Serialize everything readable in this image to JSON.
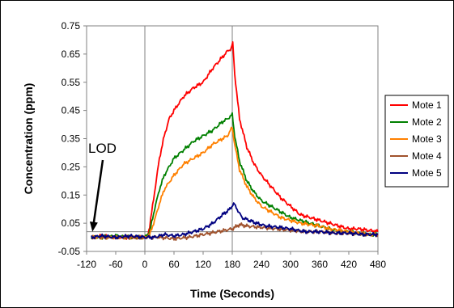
{
  "chart_data": {
    "type": "line",
    "title": "",
    "xlabel": "Time (Seconds)",
    "ylabel": "Concentration (ppm)",
    "xlim": [
      -120,
      480
    ],
    "ylim": [
      -0.05,
      0.75
    ],
    "xticks": [
      "-120",
      "-60",
      "0",
      "60",
      "120",
      "180",
      "240",
      "300",
      "360",
      "420",
      "480"
    ],
    "yticks": [
      "-0.05",
      "0.05",
      "0.15",
      "0.25",
      "0.35",
      "0.45",
      "0.55",
      "0.65",
      "0.75"
    ],
    "grid": false,
    "legend_position": "right",
    "reference_lines": {
      "vertical_x": [
        0,
        180
      ],
      "horizontal_y": [
        0.02
      ]
    },
    "annotation": {
      "text": "LOD",
      "points_to": [
        -108,
        0.02
      ]
    },
    "series": [
      {
        "name": "Mote 1",
        "color": "#ff0000",
        "points": [
          [
            -110,
            0.0
          ],
          [
            -90,
            0.005
          ],
          [
            -60,
            0.0
          ],
          [
            -30,
            0.0
          ],
          [
            0,
            0.0
          ],
          [
            5,
            0.0
          ],
          [
            10,
            0.04
          ],
          [
            20,
            0.16
          ],
          [
            30,
            0.28
          ],
          [
            40,
            0.36
          ],
          [
            50,
            0.42
          ],
          [
            60,
            0.45
          ],
          [
            80,
            0.5
          ],
          [
            100,
            0.53
          ],
          [
            120,
            0.55
          ],
          [
            140,
            0.6
          ],
          [
            160,
            0.64
          ],
          [
            170,
            0.66
          ],
          [
            178,
            0.67
          ],
          [
            181,
            0.69
          ],
          [
            185,
            0.58
          ],
          [
            195,
            0.42
          ],
          [
            210,
            0.32
          ],
          [
            225,
            0.26
          ],
          [
            240,
            0.22
          ],
          [
            260,
            0.18
          ],
          [
            280,
            0.14
          ],
          [
            300,
            0.11
          ],
          [
            320,
            0.08
          ],
          [
            340,
            0.07
          ],
          [
            360,
            0.06
          ],
          [
            380,
            0.05
          ],
          [
            400,
            0.04
          ],
          [
            420,
            0.03
          ],
          [
            440,
            0.03
          ],
          [
            460,
            0.025
          ],
          [
            480,
            0.02
          ]
        ]
      },
      {
        "name": "Mote 2",
        "color": "#008000",
        "points": [
          [
            -110,
            0.0
          ],
          [
            -90,
            0.0
          ],
          [
            -60,
            0.005
          ],
          [
            -30,
            0.0
          ],
          [
            0,
            0.0
          ],
          [
            10,
            0.02
          ],
          [
            20,
            0.1
          ],
          [
            30,
            0.17
          ],
          [
            40,
            0.22
          ],
          [
            60,
            0.28
          ],
          [
            80,
            0.31
          ],
          [
            100,
            0.34
          ],
          [
            120,
            0.36
          ],
          [
            140,
            0.38
          ],
          [
            160,
            0.41
          ],
          [
            170,
            0.42
          ],
          [
            180,
            0.435
          ],
          [
            185,
            0.36
          ],
          [
            195,
            0.27
          ],
          [
            210,
            0.2
          ],
          [
            225,
            0.16
          ],
          [
            240,
            0.13
          ],
          [
            260,
            0.11
          ],
          [
            280,
            0.09
          ],
          [
            300,
            0.07
          ],
          [
            320,
            0.06
          ],
          [
            340,
            0.05
          ],
          [
            360,
            0.04
          ],
          [
            380,
            0.03
          ],
          [
            400,
            0.02
          ],
          [
            420,
            0.02
          ],
          [
            440,
            0.015
          ],
          [
            460,
            0.01
          ],
          [
            480,
            0.01
          ]
        ]
      },
      {
        "name": "Mote 3",
        "color": "#ff8000",
        "points": [
          [
            -110,
            0.0
          ],
          [
            -90,
            0.0
          ],
          [
            -60,
            0.0
          ],
          [
            -30,
            0.0
          ],
          [
            0,
            0.0
          ],
          [
            10,
            0.01
          ],
          [
            20,
            0.06
          ],
          [
            30,
            0.12
          ],
          [
            40,
            0.17
          ],
          [
            60,
            0.22
          ],
          [
            80,
            0.26
          ],
          [
            100,
            0.28
          ],
          [
            120,
            0.3
          ],
          [
            140,
            0.33
          ],
          [
            160,
            0.35
          ],
          [
            170,
            0.36
          ],
          [
            180,
            0.39
          ],
          [
            185,
            0.33
          ],
          [
            195,
            0.24
          ],
          [
            210,
            0.18
          ],
          [
            225,
            0.14
          ],
          [
            240,
            0.11
          ],
          [
            260,
            0.09
          ],
          [
            280,
            0.07
          ],
          [
            300,
            0.06
          ],
          [
            320,
            0.05
          ],
          [
            340,
            0.045
          ],
          [
            360,
            0.04
          ],
          [
            380,
            0.03
          ],
          [
            400,
            0.025
          ],
          [
            420,
            0.02
          ],
          [
            440,
            0.015
          ],
          [
            460,
            0.01
          ],
          [
            480,
            0.01
          ]
        ]
      },
      {
        "name": "Mote 4",
        "color": "#a0522d",
        "points": [
          [
            -110,
            0.0
          ],
          [
            -90,
            0.0
          ],
          [
            -60,
            0.0
          ],
          [
            -30,
            0.0
          ],
          [
            0,
            0.0
          ],
          [
            30,
            0.0
          ],
          [
            60,
            -0.005
          ],
          [
            90,
            0.0
          ],
          [
            120,
            0.01
          ],
          [
            150,
            0.02
          ],
          [
            180,
            0.03
          ],
          [
            195,
            0.045
          ],
          [
            210,
            0.04
          ],
          [
            240,
            0.035
          ],
          [
            270,
            0.03
          ],
          [
            300,
            0.025
          ],
          [
            330,
            0.02
          ],
          [
            360,
            0.02
          ],
          [
            390,
            0.015
          ],
          [
            420,
            0.015
          ],
          [
            450,
            0.01
          ],
          [
            480,
            0.01
          ]
        ]
      },
      {
        "name": "Mote 5",
        "color": "#000080",
        "points": [
          [
            -110,
            0.0
          ],
          [
            -90,
            0.005
          ],
          [
            -60,
            0.0
          ],
          [
            -30,
            0.005
          ],
          [
            0,
            0.0
          ],
          [
            20,
            0.0
          ],
          [
            40,
            0.01
          ],
          [
            60,
            0.005
          ],
          [
            80,
            0.01
          ],
          [
            100,
            0.02
          ],
          [
            120,
            0.03
          ],
          [
            140,
            0.05
          ],
          [
            160,
            0.08
          ],
          [
            175,
            0.1
          ],
          [
            183,
            0.12
          ],
          [
            190,
            0.1
          ],
          [
            200,
            0.07
          ],
          [
            215,
            0.06
          ],
          [
            230,
            0.05
          ],
          [
            250,
            0.04
          ],
          [
            280,
            0.035
          ],
          [
            300,
            0.03
          ],
          [
            330,
            0.02
          ],
          [
            360,
            0.02
          ],
          [
            390,
            0.015
          ],
          [
            420,
            0.015
          ],
          [
            450,
            0.01
          ],
          [
            480,
            0.01
          ]
        ]
      }
    ]
  }
}
